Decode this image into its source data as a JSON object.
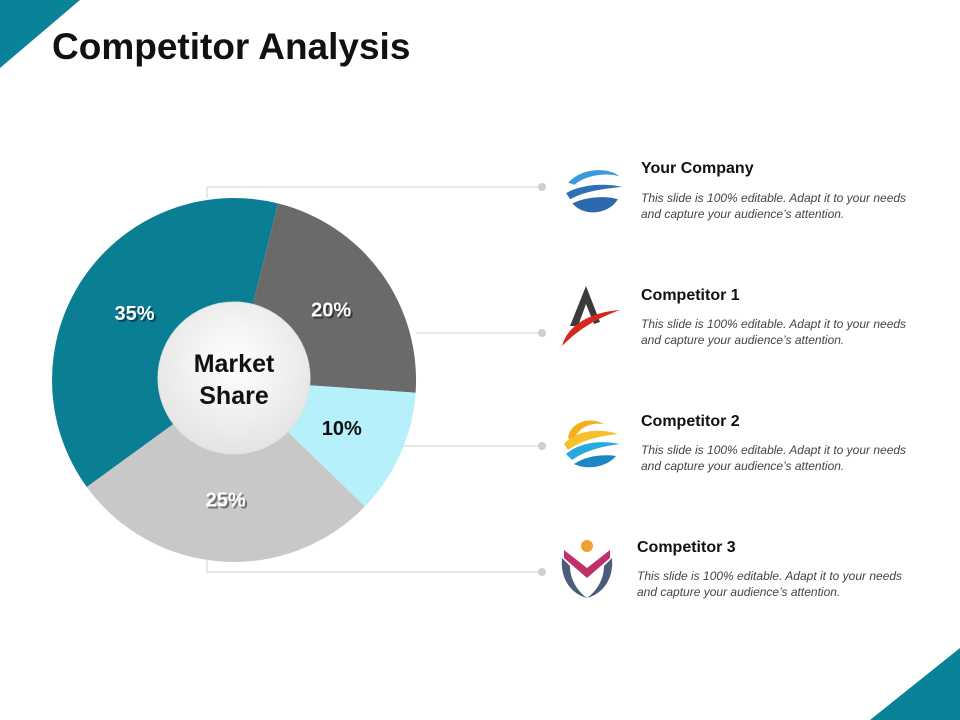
{
  "title": "Competitor Analysis",
  "colors": {
    "accent": "#0a8398"
  },
  "chart_data": {
    "type": "pie",
    "center_label": [
      "Market",
      "Share"
    ],
    "slices": [
      {
        "label": "35%",
        "value": 35,
        "color": "#0a7f94"
      },
      {
        "label": "20%",
        "value": 20,
        "color": "#6a6a6a"
      },
      {
        "label": "10%",
        "value": 10,
        "color": "#b6f0fb"
      },
      {
        "label": "25%",
        "value": 25,
        "color": "#c8c8c8"
      }
    ]
  },
  "items": [
    {
      "title": "Your Company",
      "desc": "This slide is 100% editable. Adapt it to your needs and capture your audience’s attention.",
      "icon": "wave-logo-icon"
    },
    {
      "title": "Competitor 1",
      "desc": "This slide is 100% editable. Adapt it to your needs and capture your audience’s attention.",
      "icon": "letter-a-swoosh-logo-icon"
    },
    {
      "title": "Competitor 2",
      "desc": "This slide is 100% editable. Adapt it to your needs and capture your audience’s attention.",
      "icon": "sun-wave-logo-icon"
    },
    {
      "title": "Competitor 3",
      "desc": "This slide is 100% editable. Adapt it to your needs and capture your audience’s attention.",
      "icon": "hands-heart-logo-icon"
    }
  ]
}
